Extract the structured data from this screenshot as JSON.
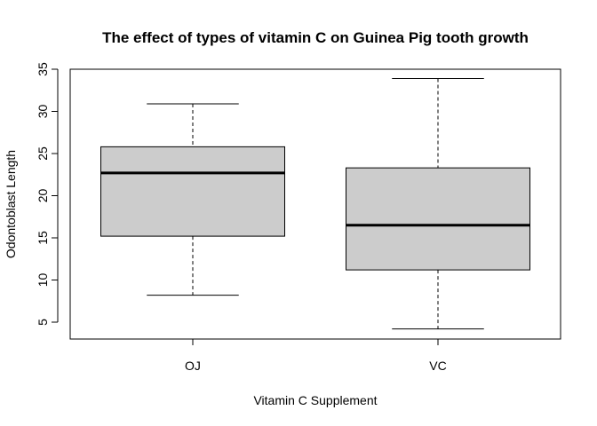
{
  "chart_data": {
    "type": "box",
    "title": "The effect of types of vitamin C on Guinea Pig tooth growth",
    "xlabel": "Vitamin C Supplement",
    "ylabel": "Odontoblast Length",
    "categories": [
      "OJ",
      "VC"
    ],
    "boxes": [
      {
        "category": "OJ",
        "whisker_low": 8.2,
        "q1": 15.2,
        "median": 22.7,
        "q3": 25.8,
        "whisker_high": 30.9
      },
      {
        "category": "VC",
        "whisker_low": 4.2,
        "q1": 11.2,
        "median": 16.5,
        "q3": 23.3,
        "whisker_high": 33.9
      }
    ],
    "ylim": [
      3,
      35
    ],
    "yticks": [
      5,
      10,
      15,
      20,
      25,
      30,
      35
    ],
    "box_fill": "#cccccc",
    "grid": false,
    "legend": "none"
  }
}
